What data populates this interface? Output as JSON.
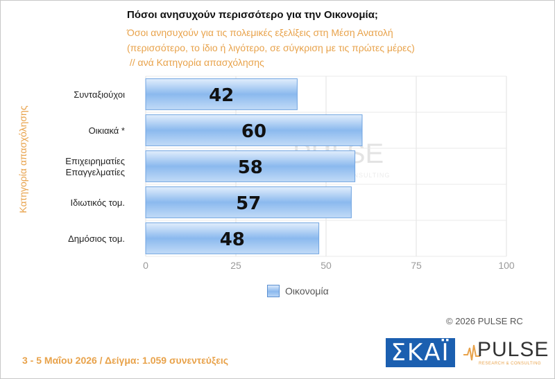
{
  "title": "Πόσοι ανησυχούν περισσότερο για την Οικονομία;",
  "subtitle_lines": [
    "Όσοι ανησυχούν για τις πολεμικές εξελίξεις στη Μέση Ανατολή",
    "(περισσότερο, το ίδιο ή λιγότερο, σε σύγκριση με τις πρώτες μέρες)",
    " // ανά Κατηγορία απασχόλησης"
  ],
  "chart_data": {
    "type": "bar",
    "orientation": "horizontal",
    "ylabel": "Κατηγορία απασχόλησης",
    "categories": [
      "Συνταξιούχοι",
      "Οικιακά *",
      "Επιχειρηματίες Επαγγελματίες",
      "Ιδιωτικός τομ.",
      "Δημόσιος τομ."
    ],
    "category_lines": [
      [
        "Συνταξιούχοι"
      ],
      [
        "Οικιακά *"
      ],
      [
        "Επιχειρηματίες",
        "Επαγγελματίες"
      ],
      [
        "Ιδιωτικός τομ."
      ],
      [
        "Δημόσιος τομ."
      ]
    ],
    "series": [
      {
        "name": "Οικονομία",
        "values": [
          42,
          60,
          58,
          57,
          48
        ]
      }
    ],
    "xlim": [
      0,
      100
    ],
    "xticks": [
      0,
      25,
      50,
      75,
      100
    ],
    "grid": true,
    "legend_position": "bottom",
    "bar_color": "#8bb9ee"
  },
  "legend": {
    "label": "Οικονομία"
  },
  "watermark": {
    "text": "PULSE",
    "sub": "RESEARCH & CONSULTING"
  },
  "copyright": "©  2026  PULSE RC",
  "footer": "3 - 5  Μαΐου 2026  /  Δείγμα:  1.059 συνεντεύξεις",
  "logos": {
    "skai": "ΣΚΑΪ",
    "pulse": "PULSE",
    "pulse_sub": "RESEARCH & CONSULTING"
  }
}
